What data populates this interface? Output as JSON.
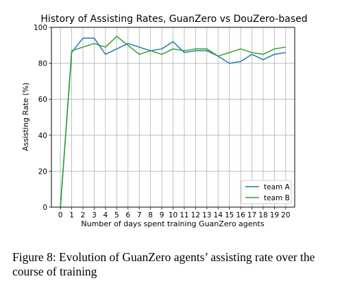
{
  "chart_data": {
    "type": "line",
    "title": "History of Assisting Rates, GuanZero vs DouZero-based",
    "xlabel": "Number of days spent training GuanZero agents",
    "ylabel": "Assisting Rate (%)",
    "x": [
      0,
      1,
      2,
      3,
      4,
      5,
      6,
      7,
      8,
      9,
      10,
      11,
      12,
      13,
      14,
      15,
      16,
      17,
      18,
      19,
      20
    ],
    "xlim": [
      -0.8,
      20.8
    ],
    "ylim": [
      0,
      100
    ],
    "yticks": [
      0,
      20,
      40,
      60,
      80,
      100
    ],
    "grid": true,
    "legend_position": "lower-right",
    "series": [
      {
        "name": "team A",
        "color": "#1f77b4",
        "values": [
          0,
          86,
          94,
          94,
          85,
          88,
          91,
          89,
          87,
          88,
          92,
          86,
          87,
          87,
          84,
          80,
          81,
          85,
          82,
          85,
          86
        ]
      },
      {
        "name": "team B",
        "color": "#2ca02c",
        "values": [
          0,
          87,
          89,
          91,
          89,
          95,
          90,
          85,
          87,
          85,
          88,
          87,
          88,
          88,
          84,
          86,
          88,
          86,
          85,
          88,
          89
        ]
      }
    ]
  },
  "caption": "Figure 8: Evolution of GuanZero agents’ assisting rate over the course of training"
}
